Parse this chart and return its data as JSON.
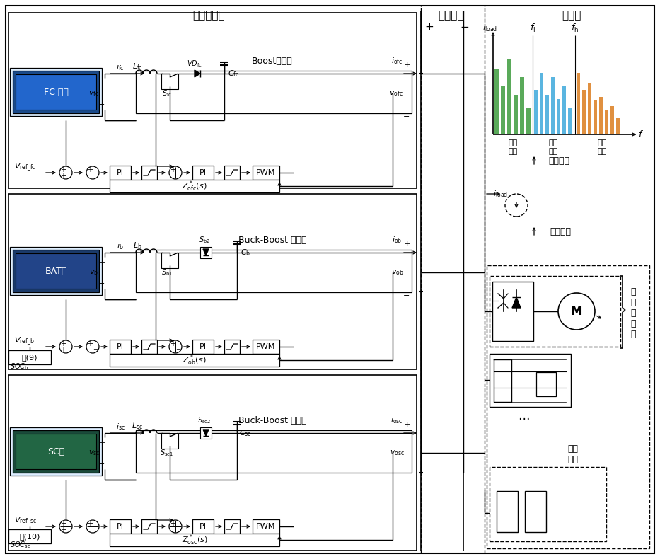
{
  "bg": "#ffffff",
  "supply_title": "供电单元侧",
  "bus_title": "直流母线",
  "load_title": "负荷侧",
  "fc_sys": "FC 系统",
  "bat_grp": "BAT组",
  "sc_grp": "SC组",
  "boost_conv": "Boost变换器",
  "bb_conv": "Buck-Boost 变换器",
  "pi": "PI",
  "pwm": "PWM",
  "low_freq": "低频\n电流",
  "mid_freq": "中频\n电流",
  "high_freq": "高频\n电流",
  "freq_domain": "频域特性",
  "load_equiv": "负荷等效",
  "const_power": "恒\n功\n率\n负\n载",
  "resist_load": "阻性\n负载",
  "shi9": "式(9)",
  "shi10": "式(10)",
  "green": "#5aaa5a",
  "blue_c": "#5ab5e0",
  "orange": "#e09040",
  "green_hs": [
    0.75,
    0.55,
    0.85,
    0.45,
    0.65,
    0.3
  ],
  "blue_hs": [
    0.5,
    0.7,
    0.45,
    0.65,
    0.4,
    0.55,
    0.3
  ],
  "orange_hs": [
    0.7,
    0.5,
    0.58,
    0.38,
    0.42,
    0.28,
    0.32,
    0.18
  ]
}
